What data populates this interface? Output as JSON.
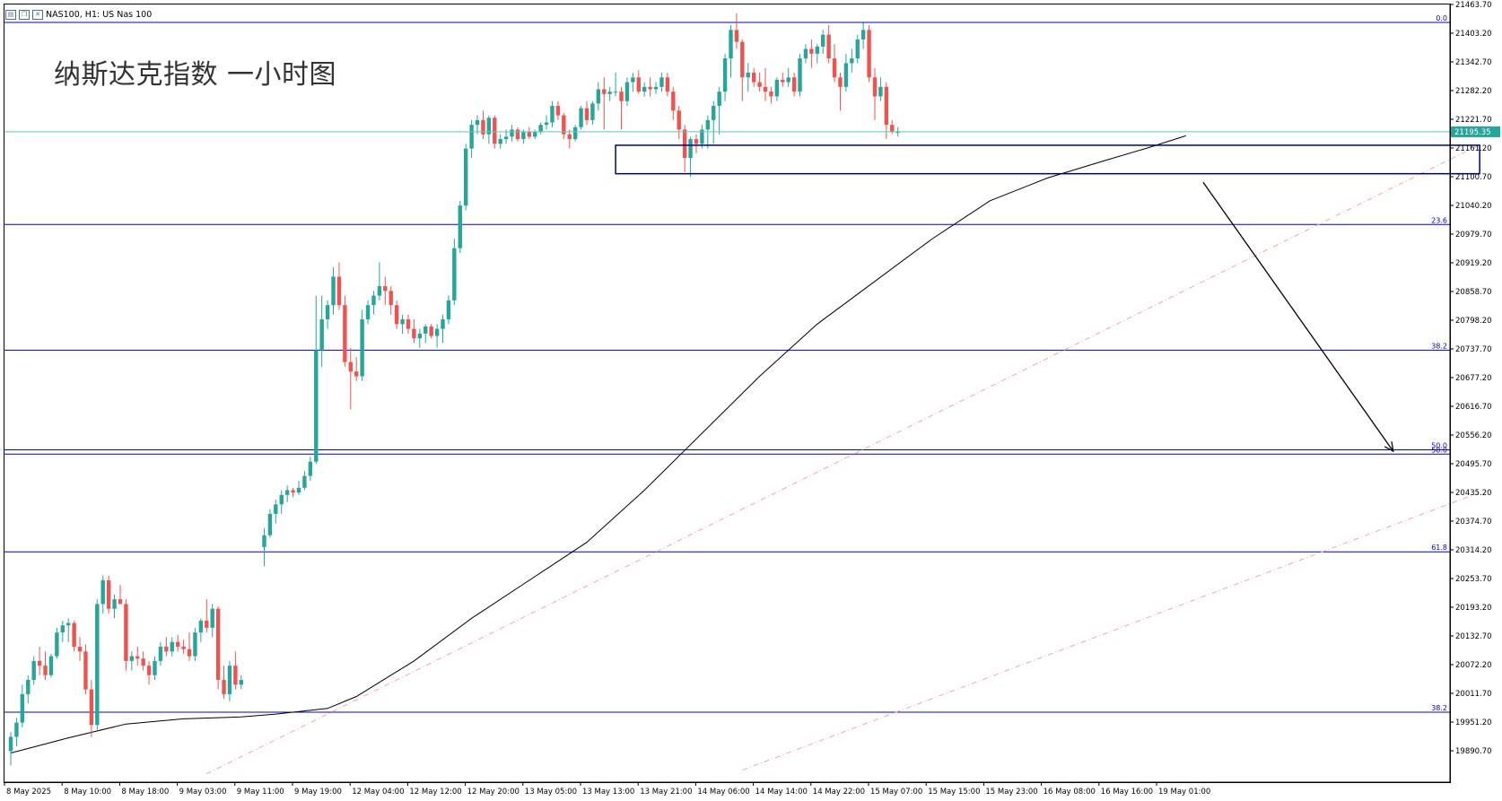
{
  "window": {
    "symbol_line": "NAS100, H1:  US Nas 100",
    "overlay_title": "纳斯达克指数 一小时图"
  },
  "icons": [
    "chart-window-icon",
    "chart-restore-icon",
    "chart-close-icon"
  ],
  "colors": {
    "up_candle": "#26a69a",
    "down_candle": "#ef5350",
    "fib_line": "#0000cc",
    "zone_box": "#00008b",
    "price_line": "#5fc8b8",
    "price_tag_bg": "#26a69a",
    "moving_average": "#000000",
    "channel_line": "#f4a6a6",
    "arrow": "#000000"
  },
  "chart_data": {
    "type": "candlestick",
    "title": "",
    "xlabel": "",
    "ylabel": "",
    "ylim": [
      19830,
      21463.7
    ],
    "y_ticks": [
      "21463.70",
      "21403.20",
      "21342.70",
      "21282.20",
      "21221.70",
      "21161.20",
      "21100.70",
      "21040.20",
      "20979.70",
      "20919.20",
      "20858.70",
      "20798.20",
      "20737.70",
      "20677.20",
      "20616.70",
      "20556.20",
      "20495.70",
      "20435.20",
      "20374.70",
      "20314.20",
      "20253.70",
      "20193.20",
      "20132.70",
      "20072.20",
      "20011.70",
      "19951.20",
      "19890.70"
    ],
    "x_ticks": [
      "8 May 2025",
      "8 May 10:00",
      "8 May 18:00",
      "9 May 03:00",
      "9 May 11:00",
      "9 May 19:00",
      "12 May 04:00",
      "12 May 12:00",
      "12 May 20:00",
      "13 May 05:00",
      "13 May 13:00",
      "13 May 21:00",
      "14 May 06:00",
      "14 May 14:00",
      "14 May 22:00",
      "15 May 07:00",
      "15 May 15:00",
      "15 May 23:00",
      "16 May 08:00",
      "16 May 16:00",
      "19 May 01:00"
    ],
    "current_price": "21195.35",
    "fib_levels": [
      {
        "label": "0.0",
        "value": 21426
      },
      {
        "label": "23.6",
        "value": 21000
      },
      {
        "label": "38.2",
        "value": 20735
      },
      {
        "label": "50.0",
        "value": 20525
      },
      {
        "label": "50.0",
        "value": 20516
      },
      {
        "label": "61.8",
        "value": 20310
      },
      {
        "label": "38.2",
        "value": 19972
      }
    ],
    "zone": {
      "x_from": 105,
      "x_to": 255,
      "y_top": 21167,
      "y_bottom": 21107
    },
    "arrow": {
      "from": [
        207,
        21089
      ],
      "to": [
        240,
        20522
      ]
    },
    "channel_lines": [
      {
        "from": [
          34,
          19842
        ],
        "to": [
          255,
          21168
        ]
      },
      {
        "from": [
          127,
          19850
        ],
        "to": [
          255,
          20435
        ]
      }
    ],
    "moving_average": [
      [
        0,
        19886
      ],
      [
        10,
        19918
      ],
      [
        20,
        19947
      ],
      [
        30,
        19958
      ],
      [
        40,
        19962
      ],
      [
        46,
        19968
      ],
      [
        55,
        19980
      ],
      [
        60,
        20005
      ],
      [
        70,
        20080
      ],
      [
        80,
        20170
      ],
      [
        90,
        20250
      ],
      [
        100,
        20330
      ],
      [
        110,
        20440
      ],
      [
        120,
        20560
      ],
      [
        130,
        20680
      ],
      [
        140,
        20790
      ],
      [
        150,
        20880
      ],
      [
        160,
        20970
      ],
      [
        170,
        21050
      ],
      [
        180,
        21098
      ],
      [
        190,
        21135
      ],
      [
        197,
        21160
      ],
      [
        204,
        21187
      ]
    ],
    "candles": [
      {
        "o": 19890,
        "h": 19930,
        "l": 19860,
        "c": 19920
      },
      {
        "o": 19920,
        "h": 19960,
        "l": 19900,
        "c": 19950
      },
      {
        "o": 19950,
        "h": 20030,
        "l": 19940,
        "c": 20010
      },
      {
        "o": 20010,
        "h": 20050,
        "l": 19990,
        "c": 20040
      },
      {
        "o": 20040,
        "h": 20090,
        "l": 20030,
        "c": 20080
      },
      {
        "o": 20080,
        "h": 20110,
        "l": 20050,
        "c": 20070
      },
      {
        "o": 20070,
        "h": 20100,
        "l": 20040,
        "c": 20050
      },
      {
        "o": 20050,
        "h": 20095,
        "l": 20045,
        "c": 20090
      },
      {
        "o": 20090,
        "h": 20150,
        "l": 20085,
        "c": 20140
      },
      {
        "o": 20140,
        "h": 20165,
        "l": 20120,
        "c": 20155
      },
      {
        "o": 20155,
        "h": 20170,
        "l": 20120,
        "c": 20160
      },
      {
        "o": 20160,
        "h": 20165,
        "l": 20100,
        "c": 20110
      },
      {
        "o": 20110,
        "h": 20130,
        "l": 20080,
        "c": 20100
      },
      {
        "o": 20100,
        "h": 20115,
        "l": 20010,
        "c": 20020
      },
      {
        "o": 20020,
        "h": 20040,
        "l": 19920,
        "c": 19945
      },
      {
        "o": 19945,
        "h": 20210,
        "l": 19935,
        "c": 20200
      },
      {
        "o": 20200,
        "h": 20260,
        "l": 20180,
        "c": 20250
      },
      {
        "o": 20250,
        "h": 20260,
        "l": 20180,
        "c": 20190
      },
      {
        "o": 20190,
        "h": 20220,
        "l": 20170,
        "c": 20210
      },
      {
        "o": 20210,
        "h": 20240,
        "l": 20200,
        "c": 20200
      },
      {
        "o": 20200,
        "h": 20210,
        "l": 20060,
        "c": 20080
      },
      {
        "o": 20080,
        "h": 20100,
        "l": 20060,
        "c": 20090
      },
      {
        "o": 20090,
        "h": 20110,
        "l": 20070,
        "c": 20085
      },
      {
        "o": 20085,
        "h": 20100,
        "l": 20060,
        "c": 20070
      },
      {
        "o": 20070,
        "h": 20080,
        "l": 20030,
        "c": 20050
      },
      {
        "o": 20050,
        "h": 20090,
        "l": 20040,
        "c": 20080
      },
      {
        "o": 20080,
        "h": 20120,
        "l": 20070,
        "c": 20110
      },
      {
        "o": 20110,
        "h": 20130,
        "l": 20090,
        "c": 20100
      },
      {
        "o": 20100,
        "h": 20130,
        "l": 20090,
        "c": 20120
      },
      {
        "o": 20120,
        "h": 20135,
        "l": 20100,
        "c": 20110
      },
      {
        "o": 20110,
        "h": 20125,
        "l": 20095,
        "c": 20105
      },
      {
        "o": 20105,
        "h": 20140,
        "l": 20080,
        "c": 20090
      },
      {
        "o": 20090,
        "h": 20150,
        "l": 20080,
        "c": 20140
      },
      {
        "o": 20140,
        "h": 20170,
        "l": 20120,
        "c": 20165
      },
      {
        "o": 20165,
        "h": 20210,
        "l": 20140,
        "c": 20150
      },
      {
        "o": 20150,
        "h": 20200,
        "l": 20130,
        "c": 20190
      },
      {
        "o": 20190,
        "h": 20195,
        "l": 20020,
        "c": 20040
      },
      {
        "o": 20040,
        "h": 20070,
        "l": 20000,
        "c": 20010
      },
      {
        "o": 20010,
        "h": 20080,
        "l": 19995,
        "c": 20070
      },
      {
        "o": 20070,
        "h": 20100,
        "l": 20020,
        "c": 20030
      },
      {
        "o": 20030,
        "h": 20050,
        "l": 20020,
        "c": 20040
      },
      {
        "o": 20320,
        "h": 20360,
        "l": 20280,
        "c": 20345
      },
      {
        "o": 20345,
        "h": 20400,
        "l": 20340,
        "c": 20390
      },
      {
        "o": 20390,
        "h": 20420,
        "l": 20370,
        "c": 20410
      },
      {
        "o": 20410,
        "h": 20440,
        "l": 20390,
        "c": 20430
      },
      {
        "o": 20430,
        "h": 20450,
        "l": 20415,
        "c": 20440
      },
      {
        "o": 20440,
        "h": 20445,
        "l": 20425,
        "c": 20435
      },
      {
        "o": 20435,
        "h": 20460,
        "l": 20430,
        "c": 20445
      },
      {
        "o": 20445,
        "h": 20480,
        "l": 20440,
        "c": 20470
      },
      {
        "o": 20470,
        "h": 20510,
        "l": 20460,
        "c": 20500
      },
      {
        "o": 20500,
        "h": 20850,
        "l": 20495,
        "c": 20735
      },
      {
        "o": 20735,
        "h": 20850,
        "l": 20700,
        "c": 20800
      },
      {
        "o": 20800,
        "h": 20840,
        "l": 20780,
        "c": 20830
      },
      {
        "o": 20830,
        "h": 20910,
        "l": 20810,
        "c": 20890
      },
      {
        "o": 20890,
        "h": 20920,
        "l": 20820,
        "c": 20830
      },
      {
        "o": 20830,
        "h": 20850,
        "l": 20700,
        "c": 20710
      },
      {
        "o": 20710,
        "h": 20740,
        "l": 20610,
        "c": 20690
      },
      {
        "o": 20690,
        "h": 20720,
        "l": 20670,
        "c": 20680
      },
      {
        "o": 20680,
        "h": 20820,
        "l": 20670,
        "c": 20800
      },
      {
        "o": 20800,
        "h": 20840,
        "l": 20790,
        "c": 20830
      },
      {
        "o": 20830,
        "h": 20860,
        "l": 20810,
        "c": 20850
      },
      {
        "o": 20850,
        "h": 20920,
        "l": 20840,
        "c": 20870
      },
      {
        "o": 20870,
        "h": 20890,
        "l": 20830,
        "c": 20860
      },
      {
        "o": 20860,
        "h": 20870,
        "l": 20810,
        "c": 20830
      },
      {
        "o": 20830,
        "h": 20840,
        "l": 20780,
        "c": 20790
      },
      {
        "o": 20790,
        "h": 20810,
        "l": 20770,
        "c": 20800
      },
      {
        "o": 20800,
        "h": 20810,
        "l": 20770,
        "c": 20780
      },
      {
        "o": 20780,
        "h": 20800,
        "l": 20750,
        "c": 20760
      },
      {
        "o": 20760,
        "h": 20780,
        "l": 20740,
        "c": 20770
      },
      {
        "o": 20770,
        "h": 20790,
        "l": 20750,
        "c": 20785
      },
      {
        "o": 20785,
        "h": 20790,
        "l": 20760,
        "c": 20765
      },
      {
        "o": 20765,
        "h": 20790,
        "l": 20740,
        "c": 20780
      },
      {
        "o": 20780,
        "h": 20810,
        "l": 20750,
        "c": 20800
      },
      {
        "o": 20800,
        "h": 20850,
        "l": 20790,
        "c": 20840
      },
      {
        "o": 20840,
        "h": 20970,
        "l": 20830,
        "c": 20950
      },
      {
        "o": 20950,
        "h": 21050,
        "l": 20940,
        "c": 21040
      },
      {
        "o": 21040,
        "h": 21170,
        "l": 21030,
        "c": 21160
      },
      {
        "o": 21160,
        "h": 21220,
        "l": 21140,
        "c": 21210
      },
      {
        "o": 21210,
        "h": 21230,
        "l": 21190,
        "c": 21220
      },
      {
        "o": 21220,
        "h": 21240,
        "l": 21180,
        "c": 21190
      },
      {
        "o": 21190,
        "h": 21230,
        "l": 21170,
        "c": 21225
      },
      {
        "o": 21225,
        "h": 21230,
        "l": 21160,
        "c": 21170
      },
      {
        "o": 21170,
        "h": 21190,
        "l": 21160,
        "c": 21180
      },
      {
        "o": 21180,
        "h": 21200,
        "l": 21170,
        "c": 21185
      },
      {
        "o": 21185,
        "h": 21210,
        "l": 21175,
        "c": 21200
      },
      {
        "o": 21200,
        "h": 21205,
        "l": 21175,
        "c": 21180
      },
      {
        "o": 21180,
        "h": 21200,
        "l": 21170,
        "c": 21195
      },
      {
        "o": 21195,
        "h": 21205,
        "l": 21180,
        "c": 21185
      },
      {
        "o": 21185,
        "h": 21200,
        "l": 21180,
        "c": 21195
      },
      {
        "o": 21195,
        "h": 21215,
        "l": 21190,
        "c": 21210
      },
      {
        "o": 21210,
        "h": 21230,
        "l": 21200,
        "c": 21215
      },
      {
        "o": 21215,
        "h": 21260,
        "l": 21205,
        "c": 21250
      },
      {
        "o": 21250,
        "h": 21260,
        "l": 21220,
        "c": 21230
      },
      {
        "o": 21230,
        "h": 21235,
        "l": 21180,
        "c": 21190
      },
      {
        "o": 21190,
        "h": 21200,
        "l": 21160,
        "c": 21180
      },
      {
        "o": 21180,
        "h": 21210,
        "l": 21175,
        "c": 21205
      },
      {
        "o": 21205,
        "h": 21250,
        "l": 21200,
        "c": 21245
      },
      {
        "o": 21245,
        "h": 21260,
        "l": 21210,
        "c": 21220
      },
      {
        "o": 21220,
        "h": 21260,
        "l": 21210,
        "c": 21255
      },
      {
        "o": 21255,
        "h": 21300,
        "l": 21240,
        "c": 21285
      },
      {
        "o": 21285,
        "h": 21310,
        "l": 21200,
        "c": 21275
      },
      {
        "o": 21275,
        "h": 21290,
        "l": 21260,
        "c": 21280
      },
      {
        "o": 21280,
        "h": 21320,
        "l": 21270,
        "c": 21280
      },
      {
        "o": 21280,
        "h": 21290,
        "l": 21200,
        "c": 21260
      },
      {
        "o": 21260,
        "h": 21310,
        "l": 21250,
        "c": 21300
      },
      {
        "o": 21300,
        "h": 21320,
        "l": 21280,
        "c": 21310
      },
      {
        "o": 21310,
        "h": 21325,
        "l": 21275,
        "c": 21280
      },
      {
        "o": 21280,
        "h": 21300,
        "l": 21270,
        "c": 21290
      },
      {
        "o": 21290,
        "h": 21310,
        "l": 21270,
        "c": 21285
      },
      {
        "o": 21285,
        "h": 21300,
        "l": 21275,
        "c": 21290
      },
      {
        "o": 21290,
        "h": 21320,
        "l": 21280,
        "c": 21310
      },
      {
        "o": 21310,
        "h": 21320,
        "l": 21270,
        "c": 21280
      },
      {
        "o": 21280,
        "h": 21290,
        "l": 21220,
        "c": 21240
      },
      {
        "o": 21240,
        "h": 21250,
        "l": 21180,
        "c": 21200
      },
      {
        "o": 21200,
        "h": 21210,
        "l": 21110,
        "c": 21140
      },
      {
        "o": 21140,
        "h": 21185,
        "l": 21100,
        "c": 21180
      },
      {
        "o": 21180,
        "h": 21190,
        "l": 21150,
        "c": 21170
      },
      {
        "o": 21170,
        "h": 21210,
        "l": 21160,
        "c": 21200
      },
      {
        "o": 21200,
        "h": 21230,
        "l": 21160,
        "c": 21220
      },
      {
        "o": 21220,
        "h": 21260,
        "l": 21170,
        "c": 21250
      },
      {
        "o": 21250,
        "h": 21290,
        "l": 21190,
        "c": 21280
      },
      {
        "o": 21280,
        "h": 21360,
        "l": 21260,
        "c": 21350
      },
      {
        "o": 21350,
        "h": 21420,
        "l": 21310,
        "c": 21410
      },
      {
        "o": 21410,
        "h": 21445,
        "l": 21370,
        "c": 21385
      },
      {
        "o": 21385,
        "h": 21390,
        "l": 21260,
        "c": 21310
      },
      {
        "o": 21310,
        "h": 21340,
        "l": 21280,
        "c": 21320
      },
      {
        "o": 21320,
        "h": 21330,
        "l": 21290,
        "c": 21300
      },
      {
        "o": 21300,
        "h": 21320,
        "l": 21280,
        "c": 21290
      },
      {
        "o": 21290,
        "h": 21330,
        "l": 21260,
        "c": 21280
      },
      {
        "o": 21280,
        "h": 21290,
        "l": 21255,
        "c": 21270
      },
      {
        "o": 21270,
        "h": 21310,
        "l": 21260,
        "c": 21305
      },
      {
        "o": 21305,
        "h": 21320,
        "l": 21290,
        "c": 21300
      },
      {
        "o": 21300,
        "h": 21330,
        "l": 21290,
        "c": 21310
      },
      {
        "o": 21310,
        "h": 21320,
        "l": 21270,
        "c": 21280
      },
      {
        "o": 21280,
        "h": 21360,
        "l": 21270,
        "c": 21350
      },
      {
        "o": 21350,
        "h": 21380,
        "l": 21340,
        "c": 21370
      },
      {
        "o": 21370,
        "h": 21390,
        "l": 21330,
        "c": 21360
      },
      {
        "o": 21360,
        "h": 21380,
        "l": 21340,
        "c": 21375
      },
      {
        "o": 21375,
        "h": 21410,
        "l": 21360,
        "c": 21400
      },
      {
        "o": 21400,
        "h": 21420,
        "l": 21340,
        "c": 21350
      },
      {
        "o": 21350,
        "h": 21380,
        "l": 21300,
        "c": 21310
      },
      {
        "o": 21310,
        "h": 21320,
        "l": 21240,
        "c": 21290
      },
      {
        "o": 21290,
        "h": 21360,
        "l": 21280,
        "c": 21340
      },
      {
        "o": 21340,
        "h": 21370,
        "l": 21320,
        "c": 21350
      },
      {
        "o": 21350,
        "h": 21400,
        "l": 21340,
        "c": 21390
      },
      {
        "o": 21390,
        "h": 21425,
        "l": 21370,
        "c": 21410
      },
      {
        "o": 21410,
        "h": 21420,
        "l": 21300,
        "c": 21310
      },
      {
        "o": 21310,
        "h": 21330,
        "l": 21220,
        "c": 21270
      },
      {
        "o": 21270,
        "h": 21310,
        "l": 21260,
        "c": 21290
      },
      {
        "o": 21290,
        "h": 21300,
        "l": 21180,
        "c": 21210
      },
      {
        "o": 21210,
        "h": 21220,
        "l": 21190,
        "c": 21195
      },
      {
        "o": 21195,
        "h": 21205,
        "l": 21185,
        "c": 21195
      }
    ]
  }
}
